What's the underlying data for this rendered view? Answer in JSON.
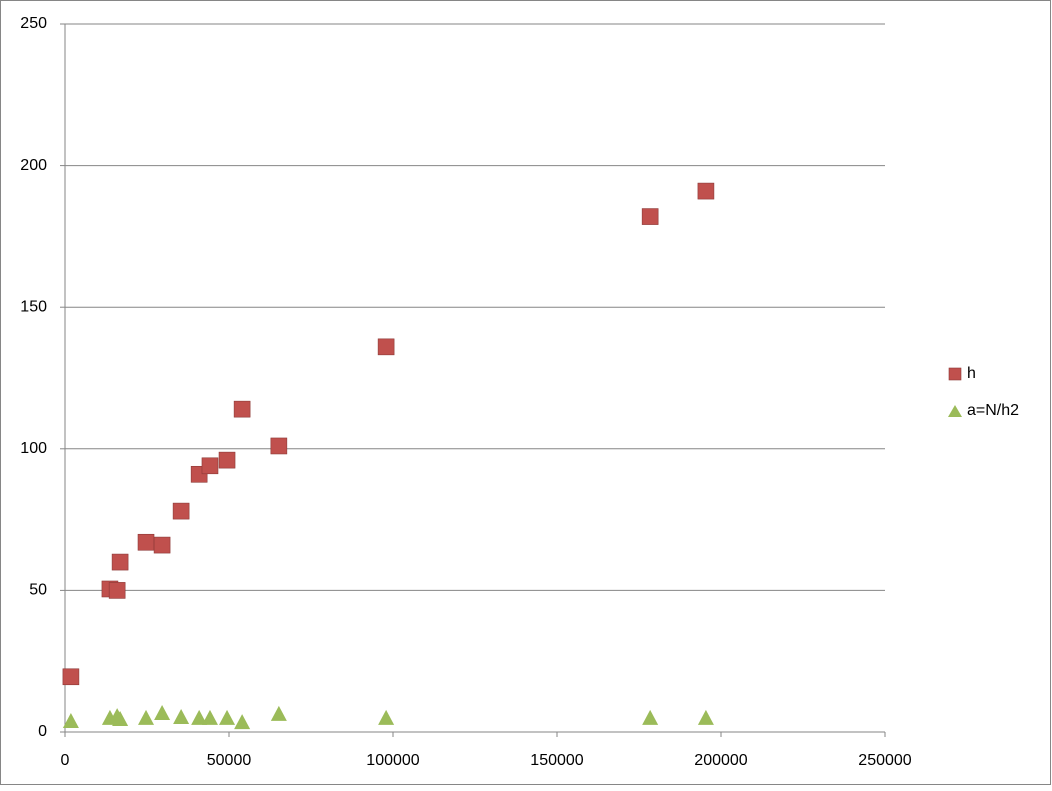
{
  "chart_data": {
    "type": "scatter",
    "x": [
      1800,
      13700,
      15900,
      16800,
      24700,
      29600,
      35400,
      40900,
      44200,
      49400,
      54000,
      65200,
      97900,
      178400,
      195400
    ],
    "series": [
      {
        "name": "h",
        "color": "#c0504d",
        "marker": "square",
        "values": [
          19.5,
          50.5,
          50,
          60,
          67,
          66,
          78,
          91,
          94,
          96,
          114,
          101,
          136,
          182,
          191
        ]
      },
      {
        "name": "a=N/h2",
        "color": "#9bbb59",
        "marker": "triangle",
        "values": [
          3.9,
          5,
          5.6,
          4.6,
          5,
          6.7,
          5.3,
          5,
          5,
          5,
          3.5,
          6.4,
          5,
          5,
          5
        ]
      }
    ],
    "xlim": [
      0,
      250000
    ],
    "xticks": [
      0,
      50000,
      100000,
      150000,
      200000,
      250000
    ],
    "ylim": [
      0,
      250
    ],
    "yticks": [
      0,
      50,
      100,
      150,
      200,
      250
    ],
    "grid": true,
    "legend": "right"
  }
}
